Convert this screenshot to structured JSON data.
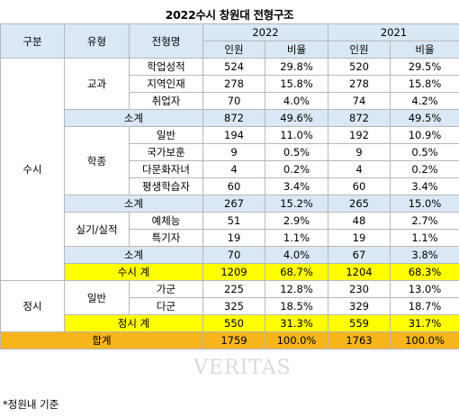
{
  "title": "2022수시 창원대 전형구조",
  "headers": {
    "category": "구분",
    "type": "유형",
    "admission": "전형명",
    "year1": "2022",
    "year2": "2021",
    "count": "인원",
    "ratio": "비율"
  },
  "groups": {
    "susi": "수시",
    "jeongsi": "정시",
    "gyogwa": "교과",
    "hakjong": "학종",
    "silgi": "실기/실적",
    "ilban": "일반"
  },
  "rows": {
    "r1": {
      "name": "학업성적",
      "c22": "524",
      "p22": "29.8%",
      "c21": "520",
      "p21": "29.5%"
    },
    "r2": {
      "name": "지역인재",
      "c22": "278",
      "p22": "15.8%",
      "c21": "278",
      "p21": "15.8%"
    },
    "r3": {
      "name": "취업자",
      "c22": "70",
      "p22": "4.0%",
      "c21": "74",
      "p21": "4.2%"
    },
    "s1": {
      "name": "소계",
      "c22": "872",
      "p22": "49.6%",
      "c21": "872",
      "p21": "49.5%"
    },
    "r4": {
      "name": "일반",
      "c22": "194",
      "p22": "11.0%",
      "c21": "192",
      "p21": "10.9%"
    },
    "r5": {
      "name": "국가보훈",
      "c22": "9",
      "p22": "0.5%",
      "c21": "9",
      "p21": "0.5%"
    },
    "r6": {
      "name": "다문화자녀",
      "c22": "4",
      "p22": "0.2%",
      "c21": "4",
      "p21": "0.2%"
    },
    "r7": {
      "name": "평생학습자",
      "c22": "60",
      "p22": "3.4%",
      "c21": "60",
      "p21": "3.4%"
    },
    "s2": {
      "name": "소계",
      "c22": "267",
      "p22": "15.2%",
      "c21": "265",
      "p21": "15.0%"
    },
    "r8": {
      "name": "예체능",
      "c22": "51",
      "p22": "2.9%",
      "c21": "48",
      "p21": "2.7%"
    },
    "r9": {
      "name": "특기자",
      "c22": "19",
      "p22": "1.1%",
      "c21": "19",
      "p21": "1.1%"
    },
    "s3": {
      "name": "소계",
      "c22": "70",
      "p22": "4.0%",
      "c21": "67",
      "p21": "3.8%"
    },
    "t1": {
      "name": "수시 계",
      "c22": "1209",
      "p22": "68.7%",
      "c21": "1204",
      "p21": "68.3%"
    },
    "r10": {
      "name": "가군",
      "c22": "225",
      "p22": "12.8%",
      "c21": "230",
      "p21": "13.0%"
    },
    "r11": {
      "name": "다군",
      "c22": "325",
      "p22": "18.5%",
      "c21": "329",
      "p21": "18.7%"
    },
    "t2": {
      "name": "정시 계",
      "c22": "550",
      "p22": "31.3%",
      "c21": "559",
      "p21": "31.7%"
    },
    "total": {
      "name": "합계",
      "c22": "1759",
      "p22": "100.0%",
      "c21": "1763",
      "p21": "100.0%"
    }
  },
  "footnote": "*정원내 기준",
  "watermark": "VERITAS"
}
